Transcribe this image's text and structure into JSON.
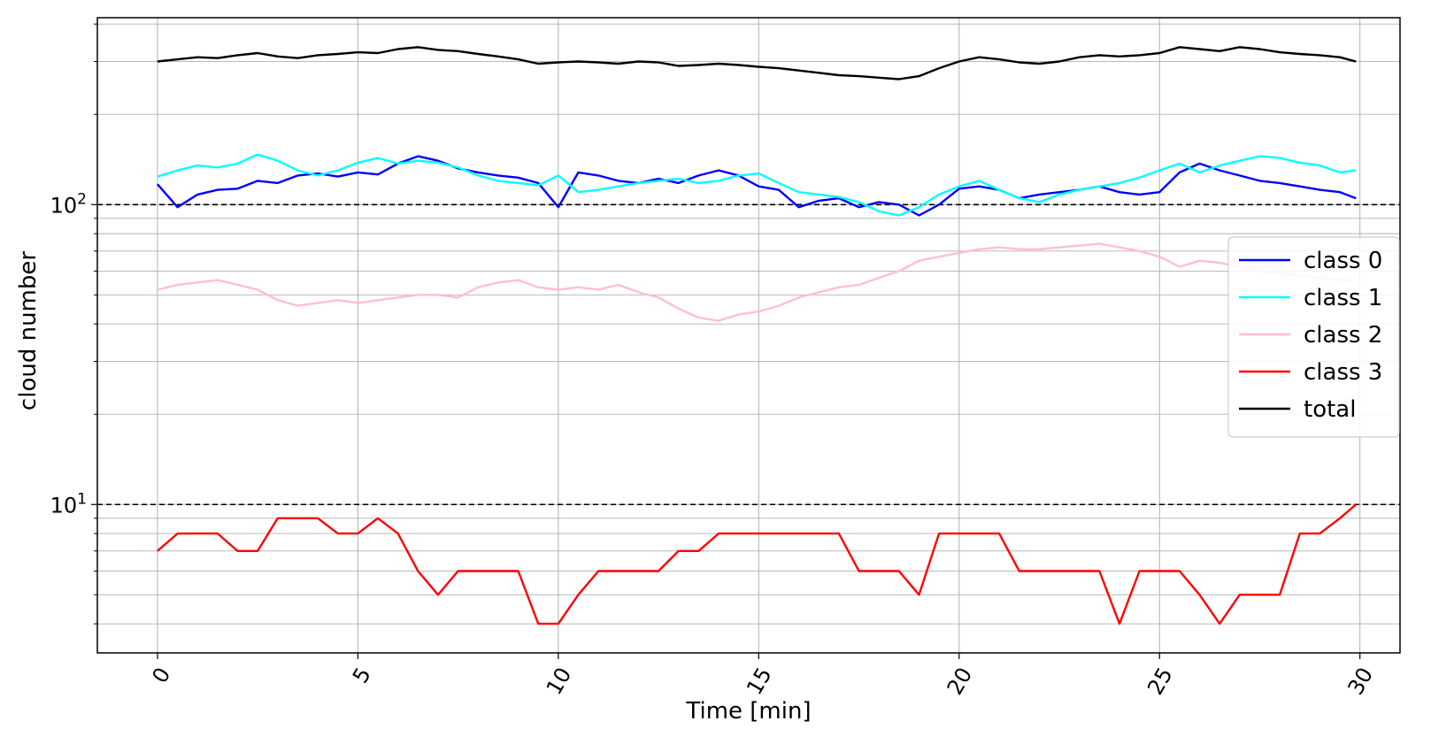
{
  "chart_data": {
    "type": "line",
    "xlabel": "Time [min]",
    "ylabel": "cloud number",
    "x_scale": "linear",
    "y_scale": "log",
    "xlim": [
      -1.5,
      31.0
    ],
    "ylim": [
      3.2,
      420
    ],
    "xticks": [
      0,
      5,
      10,
      15,
      20,
      25,
      30
    ],
    "xtick_labels": [
      "0",
      "5",
      "10",
      "15",
      "20",
      "25",
      "30"
    ],
    "xtick_rotation_deg": 60,
    "yticks": [
      10,
      100
    ],
    "ytick_labels": [
      {
        "base": "10",
        "exp": "1"
      },
      {
        "base": "10",
        "exp": "2"
      }
    ],
    "grid": true,
    "reference_lines": [
      {
        "y": 10,
        "style": "dashed",
        "color": "#000000"
      },
      {
        "y": 100,
        "style": "dashed",
        "color": "#000000"
      }
    ],
    "legend_position": "center-right",
    "series": [
      {
        "name": "class 0",
        "color": "#0000ff",
        "x": [
          0,
          0.5,
          1,
          1.5,
          2,
          2.5,
          3,
          3.5,
          4,
          4.5,
          5,
          5.5,
          6,
          6.5,
          7,
          7.5,
          8,
          8.5,
          9,
          9.5,
          10,
          10.5,
          11,
          11.5,
          12,
          12.5,
          13,
          13.5,
          14,
          14.5,
          15,
          15.5,
          16,
          16.5,
          17,
          17.5,
          18,
          18.5,
          19,
          19.5,
          20,
          20.5,
          21,
          21.5,
          22,
          22.5,
          23,
          23.5,
          24,
          24.5,
          25,
          25.5,
          26,
          26.5,
          27,
          27.5,
          28,
          28.5,
          29,
          29.5,
          29.9
        ],
        "y": [
          117,
          98,
          108,
          112,
          113,
          120,
          118,
          125,
          127,
          124,
          128,
          126,
          137,
          145,
          140,
          132,
          128,
          125,
          123,
          118,
          98,
          128,
          125,
          120,
          118,
          122,
          118,
          125,
          130,
          125,
          115,
          112,
          98,
          103,
          105,
          98,
          102,
          100,
          92,
          100,
          113,
          115,
          112,
          105,
          108,
          110,
          112,
          115,
          110,
          108,
          110,
          128,
          137,
          130,
          125,
          120,
          118,
          115,
          112,
          110,
          105
        ]
      },
      {
        "name": "class 1",
        "color": "#00ffff",
        "x": [
          0,
          0.5,
          1,
          1.5,
          2,
          2.5,
          3,
          3.5,
          4,
          4.5,
          5,
          5.5,
          6,
          6.5,
          7,
          7.5,
          8,
          8.5,
          9,
          9.5,
          10,
          10.5,
          11,
          11.5,
          12,
          12.5,
          13,
          13.5,
          14,
          14.5,
          15,
          15.5,
          16,
          16.5,
          17,
          17.5,
          18,
          18.5,
          19,
          19.5,
          20,
          20.5,
          21,
          21.5,
          22,
          22.5,
          23,
          23.5,
          24,
          24.5,
          25,
          25.5,
          26,
          26.5,
          27,
          27.5,
          28,
          28.5,
          29,
          29.5,
          29.9
        ],
        "y": [
          124,
          130,
          135,
          133,
          137,
          147,
          140,
          130,
          125,
          130,
          138,
          143,
          137,
          140,
          138,
          133,
          125,
          120,
          118,
          116,
          125,
          110,
          112,
          115,
          118,
          120,
          122,
          118,
          120,
          125,
          127,
          118,
          110,
          108,
          106,
          102,
          95,
          92,
          98,
          108,
          115,
          120,
          112,
          105,
          102,
          108,
          112,
          115,
          118,
          123,
          130,
          137,
          128,
          135,
          140,
          145,
          143,
          138,
          135,
          128,
          130
        ]
      },
      {
        "name": "class 2",
        "color": "#ffc0cb",
        "x": [
          0,
          0.5,
          1,
          1.5,
          2,
          2.5,
          3,
          3.5,
          4,
          4.5,
          5,
          5.5,
          6,
          6.5,
          7,
          7.5,
          8,
          8.5,
          9,
          9.5,
          10,
          10.5,
          11,
          11.5,
          12,
          12.5,
          13,
          13.5,
          14,
          14.5,
          15,
          15.5,
          16,
          16.5,
          17,
          17.5,
          18,
          18.5,
          19,
          19.5,
          20,
          20.5,
          21,
          21.5,
          22,
          22.5,
          23,
          23.5,
          24,
          24.5,
          25,
          25.5,
          26,
          26.5,
          27,
          27.5,
          28,
          28.5,
          29,
          29.5,
          29.9
        ],
        "y": [
          52,
          54,
          55,
          56,
          54,
          52,
          48,
          46,
          47,
          48,
          47,
          48,
          49,
          50,
          50,
          49,
          53,
          55,
          56,
          53,
          52,
          53,
          52,
          54,
          51,
          49,
          45,
          42,
          41,
          43,
          44,
          46,
          49,
          51,
          53,
          54,
          57,
          60,
          65,
          67,
          69,
          71,
          72,
          71,
          71,
          72,
          73,
          74,
          72,
          70,
          67,
          62,
          65,
          64,
          62,
          60,
          59,
          58,
          57,
          56,
          56
        ]
      },
      {
        "name": "class 3",
        "color": "#ff0000",
        "x": [
          0,
          0.5,
          1,
          1.5,
          2,
          2.5,
          3,
          3.5,
          4,
          4.5,
          5,
          5.5,
          6,
          6.5,
          7,
          7.5,
          8,
          8.5,
          9,
          9.5,
          10,
          10.5,
          11,
          11.5,
          12,
          12.5,
          13,
          13.5,
          14,
          14.5,
          15,
          15.5,
          16,
          16.5,
          17,
          17.5,
          18,
          18.5,
          19,
          19.5,
          20,
          20.5,
          21,
          21.5,
          22,
          22.5,
          23,
          23.5,
          24,
          24.5,
          25,
          25.5,
          26,
          26.5,
          27,
          27.5,
          28,
          28.5,
          29,
          29.5,
          29.9
        ],
        "y": [
          7,
          8,
          8,
          8,
          7,
          7,
          9,
          9,
          9,
          8,
          8,
          9,
          8,
          6,
          5,
          6,
          6,
          6,
          6,
          4,
          4,
          5,
          6,
          6,
          6,
          6,
          7,
          7,
          8,
          8,
          8,
          8,
          8,
          8,
          8,
          6,
          6,
          6,
          5,
          8,
          8,
          8,
          8,
          6,
          6,
          6,
          6,
          6,
          4,
          6,
          6,
          6,
          5,
          4,
          5,
          5,
          5,
          8,
          8,
          9,
          10
        ]
      },
      {
        "name": "total",
        "color": "#000000",
        "x": [
          0,
          0.5,
          1,
          1.5,
          2,
          2.5,
          3,
          3.5,
          4,
          4.5,
          5,
          5.5,
          6,
          6.5,
          7,
          7.5,
          8,
          8.5,
          9,
          9.5,
          10,
          10.5,
          11,
          11.5,
          12,
          12.5,
          13,
          13.5,
          14,
          14.5,
          15,
          15.5,
          16,
          16.5,
          17,
          17.5,
          18,
          18.5,
          19,
          19.5,
          20,
          20.5,
          21,
          21.5,
          22,
          22.5,
          23,
          23.5,
          24,
          24.5,
          25,
          25.5,
          26,
          26.5,
          27,
          27.5,
          28,
          28.5,
          29,
          29.5,
          29.9
        ],
        "y": [
          300,
          305,
          310,
          308,
          315,
          320,
          312,
          308,
          315,
          318,
          322,
          320,
          330,
          335,
          328,
          325,
          318,
          312,
          305,
          295,
          298,
          300,
          298,
          295,
          300,
          298,
          290,
          292,
          295,
          292,
          288,
          285,
          280,
          275,
          270,
          268,
          265,
          262,
          268,
          285,
          300,
          310,
          305,
          298,
          295,
          300,
          310,
          315,
          312,
          315,
          320,
          335,
          330,
          325,
          335,
          330,
          322,
          318,
          315,
          310,
          300
        ]
      }
    ]
  }
}
